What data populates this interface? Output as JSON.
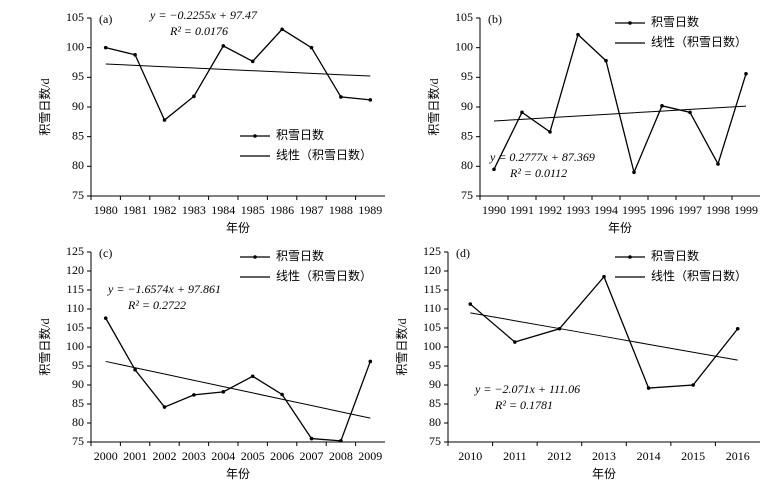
{
  "chart_data": [
    {
      "type": "line",
      "panel_label": "(a)",
      "x_label": "年份",
      "y_label": "积雪日数/d",
      "categories": [
        "1980",
        "1981",
        "1982",
        "1983",
        "1984",
        "1985",
        "1986",
        "1987",
        "1988",
        "1989"
      ],
      "series": [
        {
          "name": "积雪日数",
          "color": "#000000",
          "values": [
            100,
            98.8,
            87.8,
            91.8,
            100.3,
            97.7,
            103.1,
            100,
            91.7,
            91.2
          ]
        },
        {
          "name": "线性（积雪日数）",
          "color": "#000000",
          "values": [
            97.24,
            97.02,
            96.79,
            96.57,
            96.34,
            96.12,
            95.89,
            95.67,
            95.44,
            95.22
          ]
        }
      ],
      "annotations": [
        "y = −0.2255x + 97.47",
        "R² = 0.0176"
      ],
      "ylim": [
        75,
        105
      ],
      "yticks": [
        75,
        80,
        85,
        90,
        95,
        100,
        105
      ],
      "legend": "lower right"
    },
    {
      "type": "line",
      "panel_label": "(b)",
      "x_label": "年份",
      "y_label": "积雪日数/d",
      "categories": [
        "1990",
        "1991",
        "1992",
        "1993",
        "1994",
        "1995",
        "1996",
        "1997",
        "1998",
        "1999"
      ],
      "series": [
        {
          "name": "积雪日数",
          "color": "#000000",
          "values": [
            79.5,
            89.1,
            85.8,
            102.2,
            97.8,
            79,
            90.2,
            89.1,
            80.4,
            95.6
          ]
        },
        {
          "name": "线性（积雪日数）",
          "color": "#000000",
          "values": [
            87.65,
            87.92,
            88.2,
            88.48,
            88.76,
            89.04,
            89.31,
            89.59,
            89.87,
            90.15
          ]
        }
      ],
      "annotations": [
        "y = 0.2777x + 87.369",
        "R² = 0.0112"
      ],
      "ylim": [
        75,
        105
      ],
      "yticks": [
        75,
        80,
        85,
        90,
        95,
        100,
        105
      ],
      "legend": "upper right"
    },
    {
      "type": "line",
      "panel_label": "(c)",
      "x_label": "年份",
      "y_label": "积雪日数/d",
      "categories": [
        "2000",
        "2001",
        "2002",
        "2003",
        "2004",
        "2005",
        "2006",
        "2007",
        "2008",
        "2009"
      ],
      "series": [
        {
          "name": "积雪日数",
          "color": "#000000",
          "values": [
            107.6,
            94,
            84.2,
            87.4,
            88.2,
            92.3,
            87.5,
            75.9,
            75.3,
            96.2
          ]
        },
        {
          "name": "线性（积雪日数）",
          "color": "#000000",
          "values": [
            96.2,
            94.55,
            92.89,
            91.23,
            89.57,
            87.92,
            86.26,
            84.6,
            82.94,
            81.29
          ]
        }
      ],
      "annotations": [
        "y = −1.6574x + 97.861",
        "R² = 0.2722"
      ],
      "ylim": [
        75,
        125
      ],
      "yticks": [
        75,
        80,
        85,
        90,
        95,
        100,
        105,
        110,
        115,
        120,
        125
      ],
      "legend": "upper right"
    },
    {
      "type": "line",
      "panel_label": "(d)",
      "x_label": "年份",
      "y_label": "积雪日数/d",
      "categories": [
        "2010",
        "2011",
        "2012",
        "2013",
        "2014",
        "2015",
        "2016"
      ],
      "series": [
        {
          "name": "积雪日数",
          "color": "#000000",
          "values": [
            111.3,
            101.3,
            104.8,
            118.5,
            89.2,
            90,
            104.8
          ]
        },
        {
          "name": "线性（积雪日数）",
          "color": "#000000",
          "values": [
            108.99,
            106.92,
            104.85,
            102.78,
            100.7,
            98.63,
            96.56
          ]
        }
      ],
      "annotations": [
        "y = −2.071x + 111.06",
        "R² = 0.1781"
      ],
      "ylim": [
        75,
        125
      ],
      "yticks": [
        75,
        80,
        85,
        90,
        95,
        100,
        105,
        110,
        115,
        120,
        125
      ],
      "legend": "upper right"
    }
  ]
}
